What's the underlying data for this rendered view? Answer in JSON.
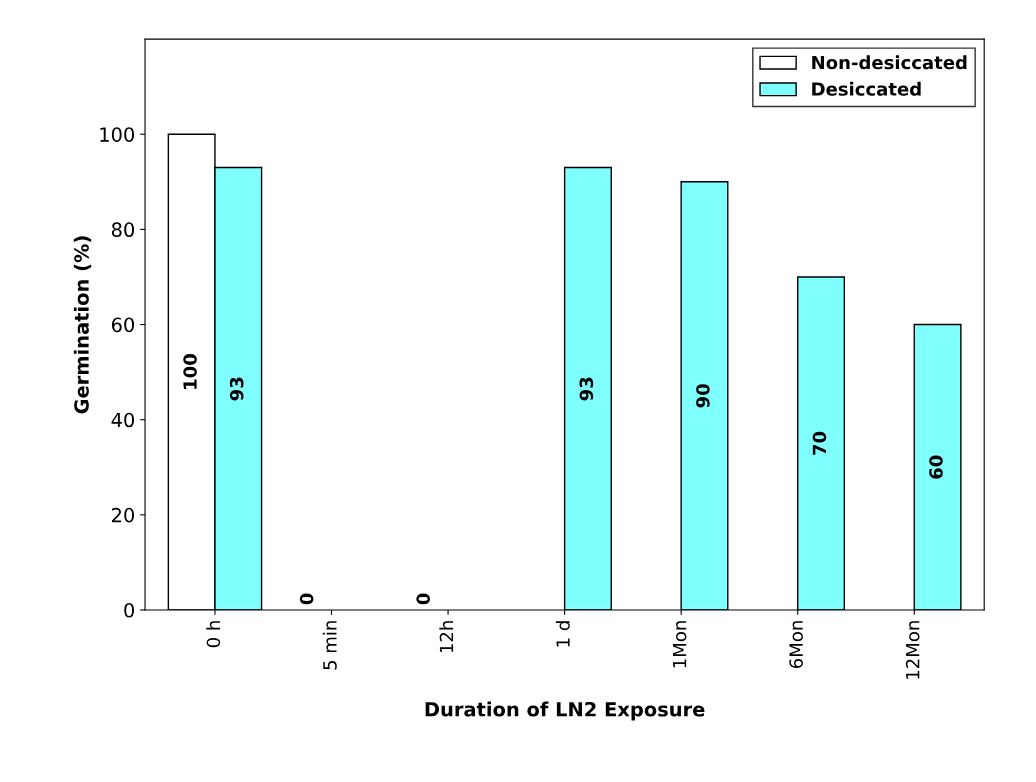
{
  "chart_data": {
    "type": "bar",
    "xlabel": "Duration of LN2 Exposure",
    "ylabel": "Germination (%)",
    "categories": [
      "0 h",
      "5 min",
      "12h",
      "1 d",
      "1Mon",
      "6Mon",
      "12Mon"
    ],
    "series": [
      {
        "name": "Non-desiccated",
        "color": "#ffffff",
        "values": [
          100,
          0,
          0,
          null,
          null,
          null,
          null
        ]
      },
      {
        "name": "Desiccated",
        "color": "#80ffff",
        "values": [
          93,
          null,
          null,
          93,
          90,
          70,
          60
        ]
      }
    ],
    "ylim": [
      0,
      120
    ],
    "yticks": [
      0,
      20,
      40,
      60,
      80,
      100
    ],
    "data_labels": true,
    "legend": "top right",
    "grid": false
  }
}
